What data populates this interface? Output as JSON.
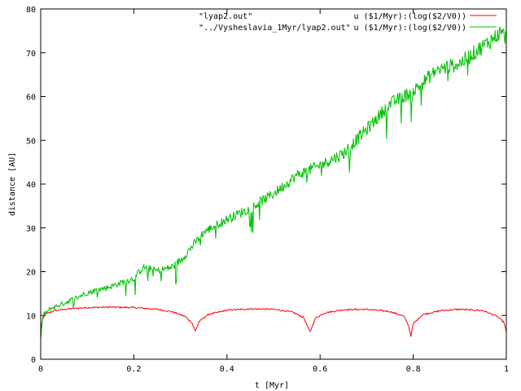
{
  "chart_data": {
    "type": "line",
    "title": "",
    "xlabel": "t [Myr]",
    "ylabel": "distance [AU]",
    "xlim": [
      0,
      1
    ],
    "ylim": [
      0,
      80
    ],
    "xticks": [
      0,
      0.2,
      0.4,
      0.6,
      0.8,
      1
    ],
    "xtick_labels": [
      "0",
      "0.2",
      "0.4",
      "0.6",
      "0.8",
      "1"
    ],
    "yticks": [
      0,
      10,
      20,
      30,
      40,
      50,
      60,
      70,
      80
    ],
    "ytick_labels": [
      "0",
      "10",
      "20",
      "30",
      "40",
      "50",
      "60",
      "70",
      "80"
    ],
    "grid": false,
    "legend_position": "top-right",
    "series": [
      {
        "name": "\"lyap2.out\"",
        "expression": "u ($1/Myr):(log($2/V0))",
        "color": "#ff0000",
        "x": [
          0,
          0.002,
          0.01,
          0.03,
          0.06,
          0.1,
          0.15,
          0.2,
          0.25,
          0.28,
          0.31,
          0.325,
          0.332,
          0.34,
          0.36,
          0.4,
          0.45,
          0.5,
          0.54,
          0.565,
          0.578,
          0.582,
          0.59,
          0.61,
          0.65,
          0.7,
          0.75,
          0.78,
          0.79,
          0.795,
          0.8,
          0.82,
          0.86,
          0.9,
          0.95,
          0.98,
          0.995,
          1
        ],
        "y": [
          4.5,
          8.5,
          10.3,
          11.1,
          11.5,
          11.8,
          11.9,
          11.8,
          11.4,
          10.9,
          9.8,
          8.3,
          6.4,
          8.6,
          10.2,
          11.2,
          11.5,
          11.4,
          10.8,
          9.5,
          6.2,
          7.2,
          9.4,
          10.6,
          11.3,
          11.4,
          10.9,
          9.8,
          7.7,
          5.3,
          8.1,
          10.2,
          11.1,
          11.4,
          11.1,
          9.8,
          8.4,
          6.1
        ]
      },
      {
        "name": "\"../Vysheslavia_1Myr/lyap2.out\"",
        "expression": "u ($1/Myr):(log($2/V0))",
        "color": "#00c000",
        "x": [
          0,
          0.005,
          0.02,
          0.05,
          0.1,
          0.15,
          0.2,
          0.22,
          0.25,
          0.28,
          0.3,
          0.35,
          0.4,
          0.45,
          0.5,
          0.55,
          0.6,
          0.65,
          0.7,
          0.75,
          0.8,
          0.85,
          0.9,
          0.95,
          0.99,
          1
        ],
        "y": [
          5,
          10,
          11.5,
          12.8,
          15.2,
          16.6,
          18.5,
          21,
          20.2,
          21,
          22.5,
          29,
          32,
          34.5,
          37.8,
          42,
          44.3,
          47,
          52.5,
          58.3,
          61.2,
          66,
          67.6,
          71.5,
          74.8,
          73.2
        ]
      }
    ]
  }
}
